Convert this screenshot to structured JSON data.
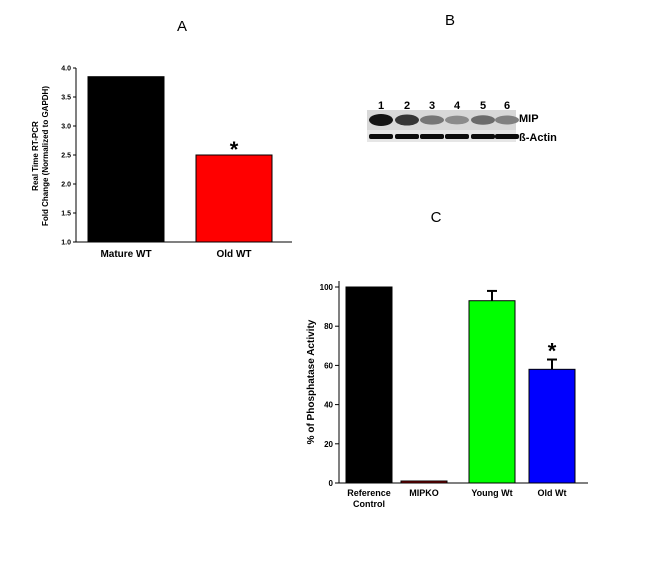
{
  "panels": {
    "a_label": "A",
    "b_label": "B",
    "c_label": "C"
  },
  "chart_data": [
    {
      "type": "bar",
      "panel": "A",
      "categories": [
        "Mature WT",
        "Old WT"
      ],
      "values": [
        3.85,
        2.5
      ],
      "colors": [
        "#000000",
        "#ff0000"
      ],
      "significance": [
        "",
        "*"
      ],
      "ylabel_line1": "Real Time RT-PCR",
      "ylabel_line2": "Fold Change (Normalized to GAPDH)",
      "ylim": [
        1.0,
        4.0
      ],
      "yticks": [
        "1.0",
        "1.5",
        "2.0",
        "2.5",
        "3.0",
        "3.5",
        "4.0"
      ],
      "grid": false
    },
    {
      "type": "bar",
      "panel": "C",
      "categories": [
        [
          "Reference",
          "Control"
        ],
        [
          "MIPKO"
        ],
        [
          "Young Wt"
        ],
        [
          "Old Wt"
        ]
      ],
      "values": [
        100,
        1,
        93,
        58
      ],
      "errors": [
        0,
        0,
        5,
        5
      ],
      "colors": [
        "#000000",
        "#8b0000",
        "#00ff00",
        "#0000ff"
      ],
      "significance": [
        "",
        "",
        "",
        "*"
      ],
      "ylabel": "% of Phosphatase Activity",
      "ylim": [
        0,
        100
      ],
      "yticks": [
        "0",
        "20",
        "40",
        "60",
        "80",
        "100"
      ],
      "grid": false
    }
  ],
  "blot": {
    "lanes": [
      "1",
      "2",
      "3",
      "4",
      "5",
      "6"
    ],
    "mip_intensity": [
      1.0,
      0.85,
      0.55,
      0.45,
      0.6,
      0.5
    ],
    "actin_intensity": [
      0.95,
      0.95,
      0.95,
      0.95,
      0.95,
      0.95
    ],
    "band_labels": [
      "MIP",
      "ß-Actin"
    ]
  }
}
